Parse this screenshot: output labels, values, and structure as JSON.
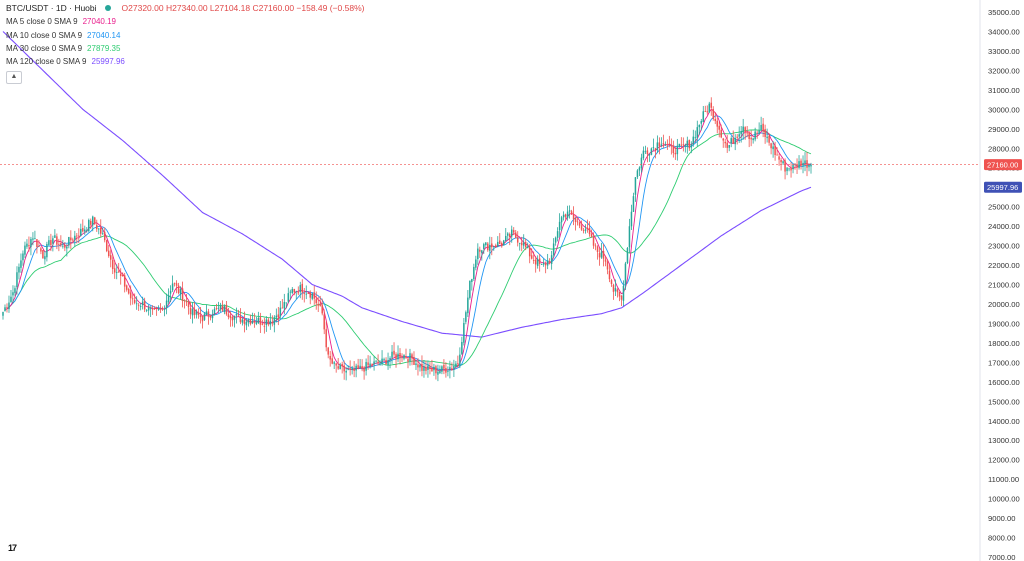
{
  "header": {
    "symbol": "BTC/USDT · 1D · Huobi",
    "ohlc": "O27320.00  H27340.00  L27104.18  C27160.00  −158.49 (−0.58%)"
  },
  "indicators": [
    {
      "label": "MA 5 close 0 SMA 9",
      "value": "27040.19",
      "color": "#e91e8c"
    },
    {
      "label": "MA 10 close 0 SMA 9",
      "value": "27040.14",
      "color": "#2196f3"
    },
    {
      "label": "MA 30 close 0 SMA 9",
      "value": "27879.35",
      "color": "#2ecc71"
    },
    {
      "label": "MA 120 close 0 SMA 9",
      "value": "25997.96",
      "color": "#7b4dff"
    }
  ],
  "collapse_icon": "chevron-up-icon",
  "logo_text": "17",
  "colors": {
    "up": "#26a69a",
    "down": "#ef5350",
    "last_price_tag": "#ef5350",
    "ma120_tag": "#3f51b5"
  },
  "chart_data": {
    "type": "candlestick",
    "title": "BTC/USDT · 1D · Huobi",
    "ylim": [
      7000,
      35000
    ],
    "yticks": [
      7000,
      8000,
      9000,
      10000,
      11000,
      12000,
      13000,
      14000,
      15000,
      16000,
      17000,
      18000,
      19000,
      20000,
      21000,
      22000,
      23000,
      24000,
      25000,
      26000,
      27000,
      28000,
      29000,
      30000,
      31000,
      32000,
      33000,
      34000,
      35000
    ],
    "ytick_labels": [
      "7000.00",
      "8000.00",
      "9000.00",
      "10000.00",
      "11000.00",
      "12000.00",
      "13000.00",
      "14000.00",
      "15000.00",
      "16000.00",
      "17000.00",
      "18000.00",
      "19000.00",
      "20000.00",
      "21000.00",
      "22000.00",
      "23000.00",
      "24000.00",
      "25000.00",
      "26000.00",
      "27000.00",
      "28000.00",
      "29000.00",
      "30000.00",
      "31000.00",
      "32000.00",
      "33000.00",
      "34000.00",
      "35000.00"
    ],
    "last_price": 27160.0,
    "last_price_label": "27160.00",
    "ma120_last": 25997.96,
    "ma120_label": "25997.96",
    "close_anchors": [
      [
        0,
        19600
      ],
      [
        5,
        20600
      ],
      [
        10,
        22700
      ],
      [
        15,
        23500
      ],
      [
        20,
        22500
      ],
      [
        25,
        23400
      ],
      [
        30,
        22900
      ],
      [
        35,
        23400
      ],
      [
        40,
        23800
      ],
      [
        45,
        24300
      ],
      [
        50,
        23500
      ],
      [
        55,
        22000
      ],
      [
        60,
        21200
      ],
      [
        65,
        20100
      ],
      [
        70,
        20000
      ],
      [
        75,
        19500
      ],
      [
        80,
        19700
      ],
      [
        85,
        21100
      ],
      [
        90,
        20400
      ],
      [
        95,
        19500
      ],
      [
        100,
        19300
      ],
      [
        105,
        19600
      ],
      [
        110,
        19800
      ],
      [
        115,
        19400
      ],
      [
        120,
        19200
      ],
      [
        125,
        19200
      ],
      [
        130,
        19100
      ],
      [
        135,
        19200
      ],
      [
        140,
        19800
      ],
      [
        145,
        20700
      ],
      [
        150,
        20800
      ],
      [
        155,
        20500
      ],
      [
        160,
        19500
      ],
      [
        163,
        17200
      ],
      [
        166,
        16800
      ],
      [
        170,
        16600
      ],
      [
        175,
        16500
      ],
      [
        180,
        16700
      ],
      [
        185,
        16900
      ],
      [
        190,
        17000
      ],
      [
        195,
        17300
      ],
      [
        200,
        17400
      ],
      [
        205,
        17200
      ],
      [
        210,
        16700
      ],
      [
        215,
        16600
      ],
      [
        220,
        16600
      ],
      [
        225,
        16800
      ],
      [
        228,
        17000
      ],
      [
        231,
        18900
      ],
      [
        234,
        21000
      ],
      [
        238,
        22900
      ],
      [
        243,
        23000
      ],
      [
        250,
        23100
      ],
      [
        255,
        23600
      ],
      [
        260,
        23200
      ],
      [
        265,
        22400
      ],
      [
        270,
        21900
      ],
      [
        275,
        22400
      ],
      [
        279,
        24300
      ],
      [
        283,
        24800
      ],
      [
        287,
        24200
      ],
      [
        292,
        23900
      ],
      [
        297,
        22800
      ],
      [
        302,
        22300
      ],
      [
        306,
        20700
      ],
      [
        310,
        20200
      ],
      [
        314,
        24000
      ],
      [
        317,
        26500
      ],
      [
        321,
        27800
      ],
      [
        325,
        28000
      ],
      [
        330,
        28400
      ],
      [
        335,
        27900
      ],
      [
        340,
        28000
      ],
      [
        345,
        28300
      ],
      [
        350,
        29500
      ],
      [
        354,
        30200
      ],
      [
        358,
        29300
      ],
      [
        363,
        28000
      ],
      [
        367,
        28600
      ],
      [
        371,
        29200
      ],
      [
        375,
        28500
      ],
      [
        380,
        29000
      ],
      [
        384,
        28300
      ],
      [
        388,
        27600
      ],
      [
        392,
        27000
      ],
      [
        396,
        27000
      ],
      [
        400,
        27300
      ],
      [
        405,
        27160
      ]
    ],
    "ma120_anchors": [
      [
        0,
        34000
      ],
      [
        20,
        32000
      ],
      [
        40,
        30000
      ],
      [
        60,
        28400
      ],
      [
        80,
        26600
      ],
      [
        100,
        24700
      ],
      [
        120,
        23600
      ],
      [
        140,
        22300
      ],
      [
        155,
        21000
      ],
      [
        170,
        20400
      ],
      [
        180,
        19800
      ],
      [
        200,
        19100
      ],
      [
        220,
        18500
      ],
      [
        240,
        18300
      ],
      [
        260,
        18800
      ],
      [
        280,
        19200
      ],
      [
        300,
        19500
      ],
      [
        310,
        19800
      ],
      [
        320,
        20500
      ],
      [
        340,
        22000
      ],
      [
        360,
        23500
      ],
      [
        380,
        24800
      ],
      [
        400,
        25800
      ],
      [
        405,
        25998
      ]
    ]
  }
}
